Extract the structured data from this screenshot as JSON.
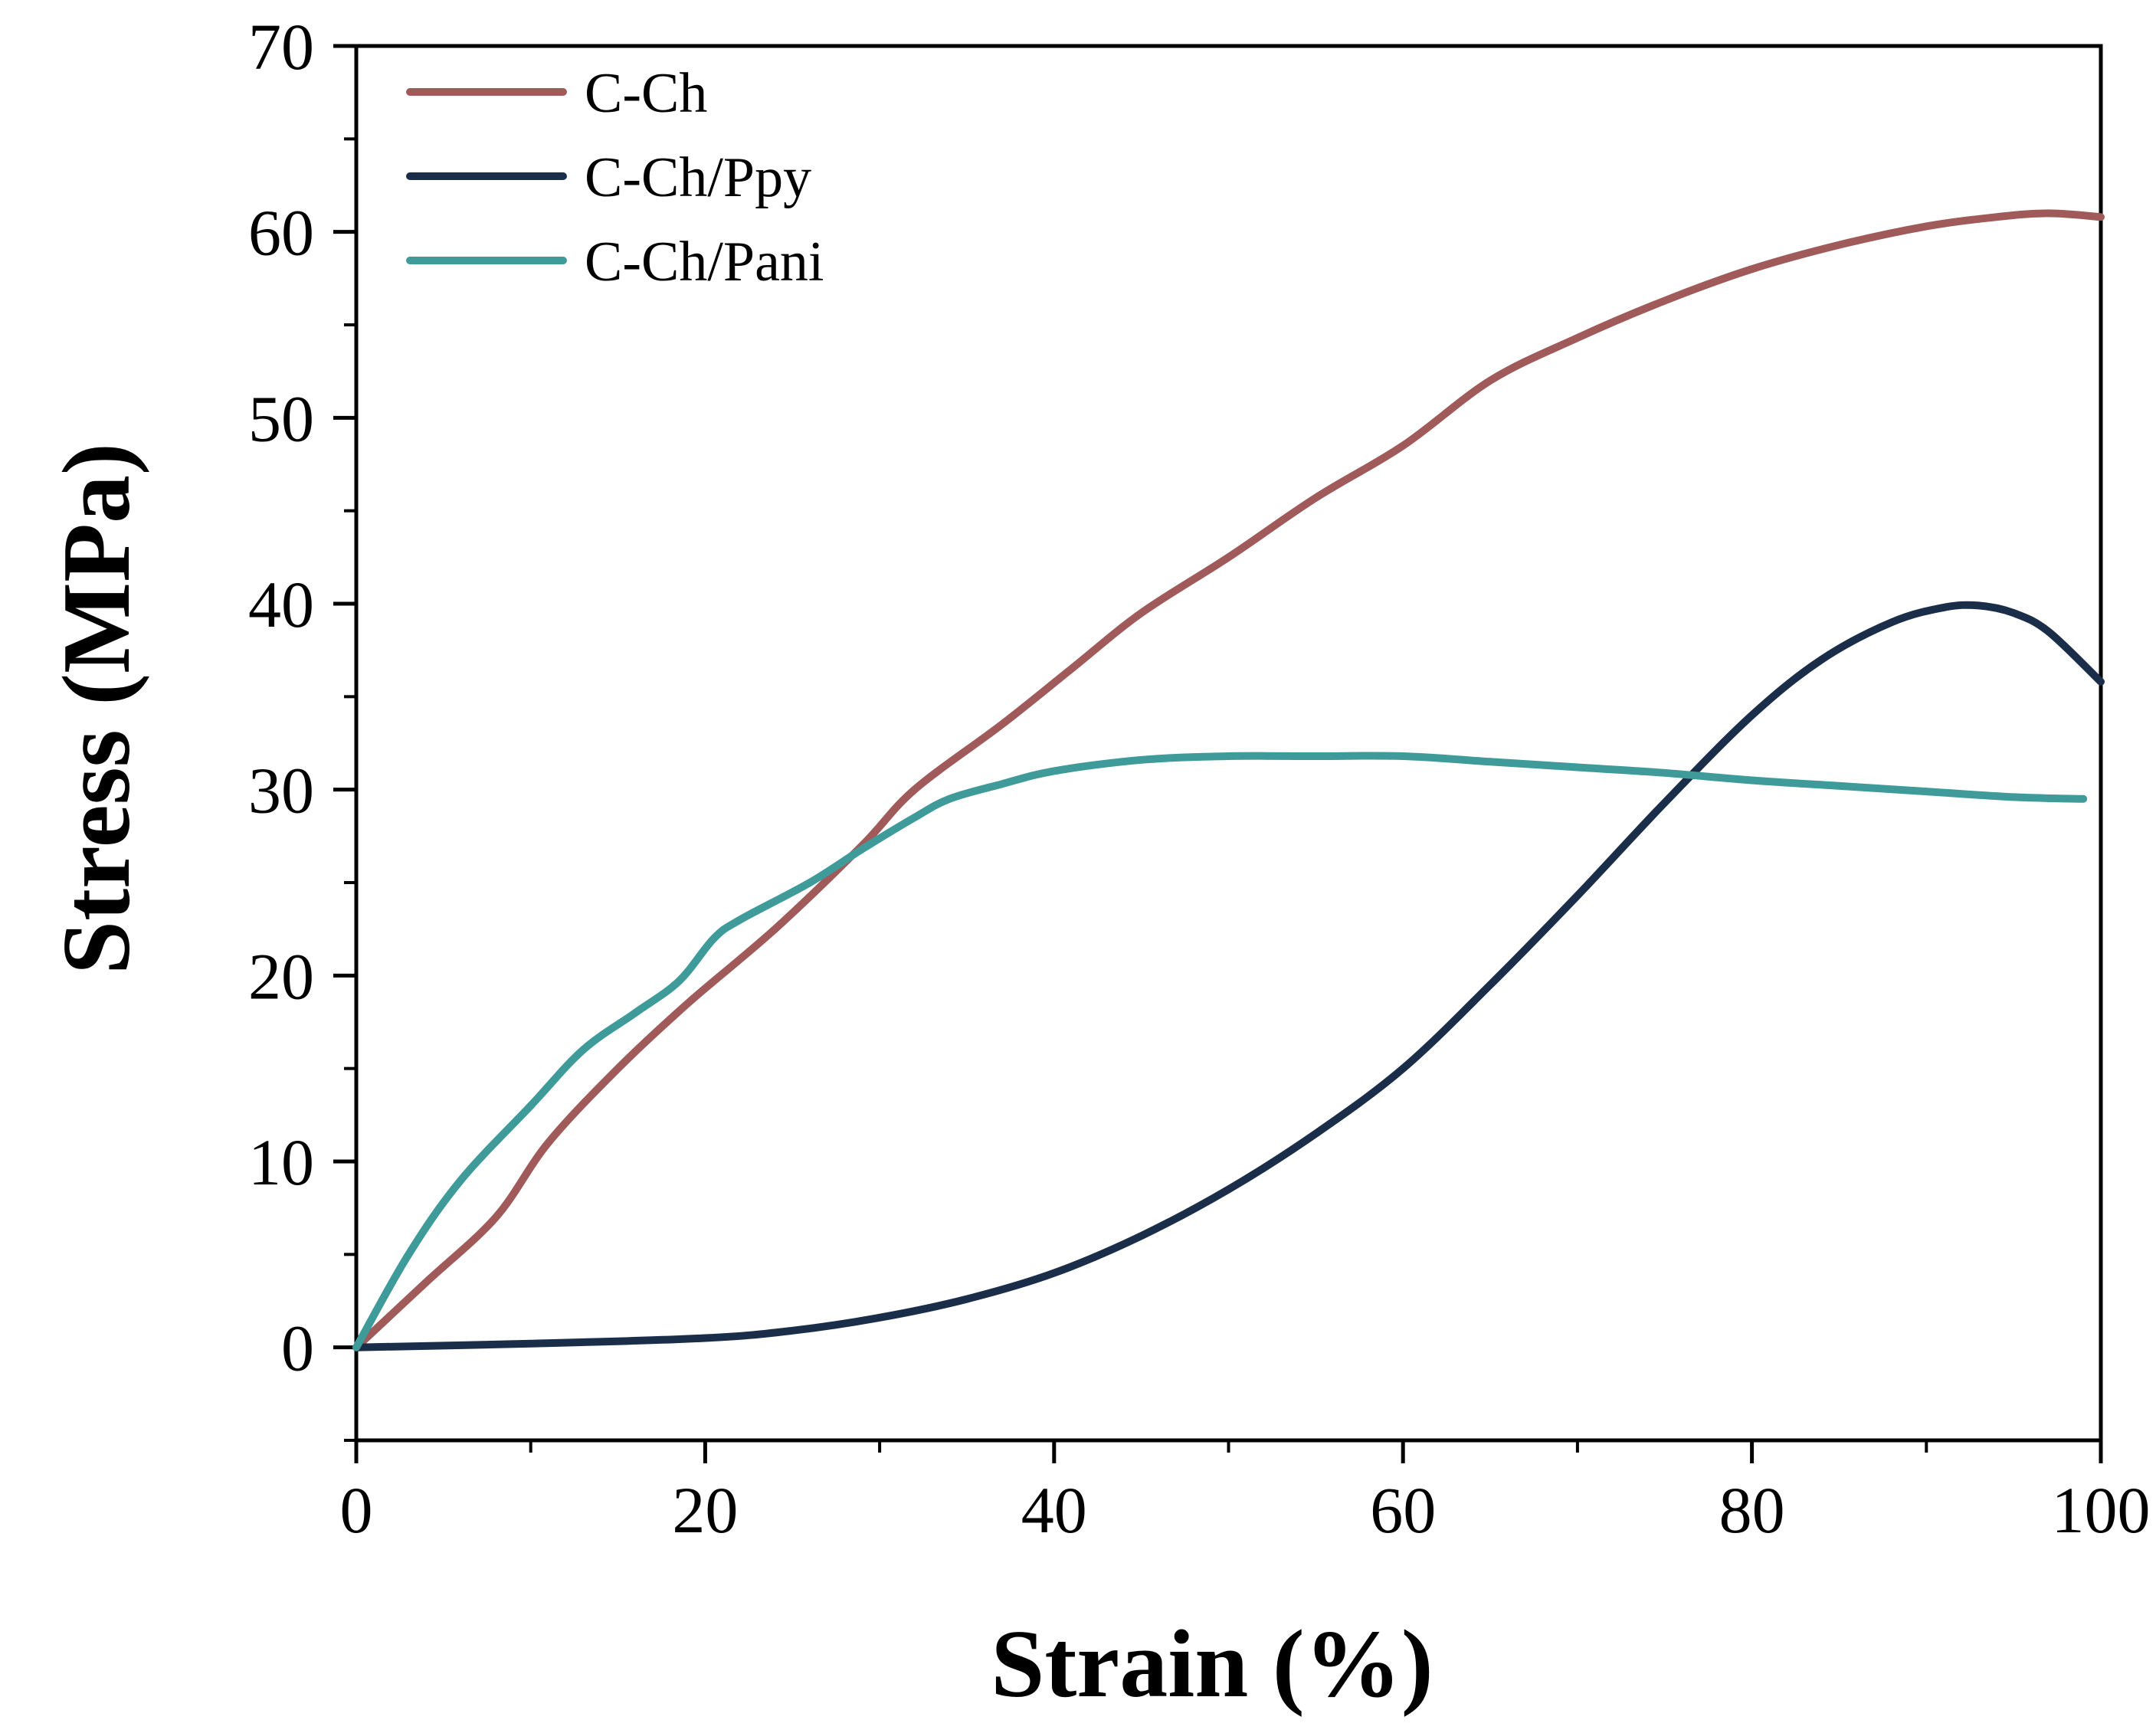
{
  "chart_data": {
    "type": "line",
    "title": "",
    "xlabel": "Strain (%)",
    "ylabel": "Stress (MPa)",
    "xlim": [
      0,
      100
    ],
    "ylim": [
      -5,
      70
    ],
    "x_ticks": [
      0,
      20,
      40,
      60,
      80,
      100
    ],
    "x_tick_labels": [
      "0",
      "20",
      "40",
      "60",
      "80",
      "100"
    ],
    "y_ticks": [
      0,
      10,
      20,
      30,
      40,
      50,
      60,
      70
    ],
    "y_tick_labels": [
      "0",
      "10",
      "20",
      "30",
      "40",
      "50",
      "60",
      "70"
    ],
    "x_minor_step": 10,
    "y_minor_step": 5,
    "grid": false,
    "legend_position": "top-left",
    "series": [
      {
        "name": "C-Ch",
        "color": "#A05A5A",
        "points": [
          [
            0,
            0
          ],
          [
            4,
            3.5
          ],
          [
            8,
            7
          ],
          [
            11,
            11
          ],
          [
            15,
            15
          ],
          [
            19,
            18.5
          ],
          [
            24,
            22.5
          ],
          [
            29,
            27
          ],
          [
            32,
            30
          ],
          [
            37,
            33.5
          ],
          [
            41,
            36.5
          ],
          [
            45,
            39.5
          ],
          [
            50,
            42.5
          ],
          [
            55,
            45.7
          ],
          [
            60,
            48.5
          ],
          [
            65,
            52
          ],
          [
            70,
            54.3
          ],
          [
            75,
            56.3
          ],
          [
            80,
            58
          ],
          [
            85,
            59.3
          ],
          [
            90,
            60.3
          ],
          [
            94,
            60.8
          ],
          [
            97,
            61
          ],
          [
            100,
            60.8
          ]
        ]
      },
      {
        "name": "C-Ch/Ppy",
        "color": "#1A2E4A",
        "points": [
          [
            0,
            0
          ],
          [
            10,
            0.2
          ],
          [
            20,
            0.5
          ],
          [
            25,
            0.9
          ],
          [
            30,
            1.6
          ],
          [
            35,
            2.6
          ],
          [
            40,
            4
          ],
          [
            45,
            6
          ],
          [
            50,
            8.5
          ],
          [
            55,
            11.5
          ],
          [
            60,
            15
          ],
          [
            65,
            19.5
          ],
          [
            70,
            24.3
          ],
          [
            75,
            29.3
          ],
          [
            80,
            34
          ],
          [
            84,
            37
          ],
          [
            88,
            39
          ],
          [
            91,
            39.8
          ],
          [
            93,
            39.9
          ],
          [
            95,
            39.5
          ],
          [
            97,
            38.5
          ],
          [
            100,
            35.8
          ]
        ]
      },
      {
        "name": "C-Ch/Pani",
        "color": "#3E9B9A",
        "points": [
          [
            0,
            0
          ],
          [
            3,
            5
          ],
          [
            6,
            9
          ],
          [
            10,
            13
          ],
          [
            13,
            16
          ],
          [
            16,
            18
          ],
          [
            18.5,
            19.7
          ],
          [
            20.5,
            22
          ],
          [
            22,
            23
          ],
          [
            26,
            25
          ],
          [
            29,
            26.8
          ],
          [
            32,
            28.5
          ],
          [
            34,
            29.5
          ],
          [
            37,
            30.3
          ],
          [
            40,
            31
          ],
          [
            45,
            31.6
          ],
          [
            50,
            31.8
          ],
          [
            55,
            31.8
          ],
          [
            60,
            31.8
          ],
          [
            65,
            31.5
          ],
          [
            70,
            31.2
          ],
          [
            75,
            30.9
          ],
          [
            80,
            30.5
          ],
          [
            85,
            30.2
          ],
          [
            90,
            29.9
          ],
          [
            95,
            29.6
          ],
          [
            99,
            29.5
          ]
        ]
      }
    ]
  }
}
